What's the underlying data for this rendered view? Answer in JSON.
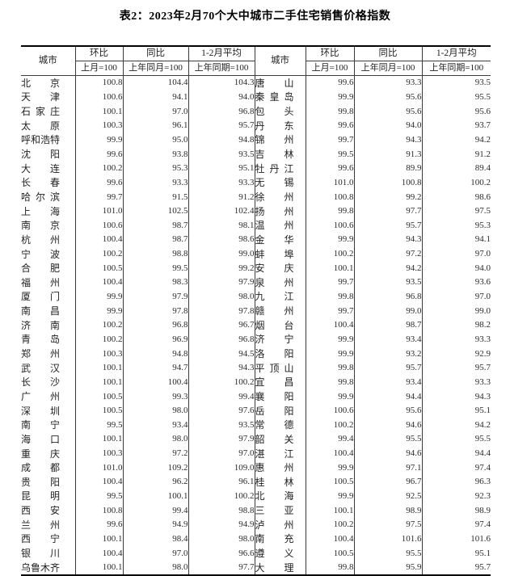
{
  "title": "表2：2023年2月70个大中城市二手住宅销售价格指数",
  "header": {
    "city": "城市",
    "mom": "环比",
    "mom_base": "上月=100",
    "yoy": "同比",
    "yoy_base": "上年同月=100",
    "avg": "1-2月平均",
    "avg_base": "上年同期=100"
  },
  "rows": [
    {
      "l": {
        "city": "北京",
        "mom": "100.8",
        "yoy": "104.4",
        "avg": "104.3"
      },
      "r": {
        "city": "唐山",
        "mom": "99.6",
        "yoy": "93.3",
        "avg": "93.5"
      }
    },
    {
      "l": {
        "city": "天津",
        "mom": "100.6",
        "yoy": "94.1",
        "avg": "94.0"
      },
      "r": {
        "city": "秦皇岛",
        "mom": "99.9",
        "yoy": "95.6",
        "avg": "95.5"
      }
    },
    {
      "l": {
        "city": "石家庄",
        "mom": "100.1",
        "yoy": "97.0",
        "avg": "96.8"
      },
      "r": {
        "city": "包头",
        "mom": "99.8",
        "yoy": "95.6",
        "avg": "95.6"
      }
    },
    {
      "l": {
        "city": "太原",
        "mom": "100.3",
        "yoy": "96.1",
        "avg": "95.7"
      },
      "r": {
        "city": "丹东",
        "mom": "99.6",
        "yoy": "94.0",
        "avg": "93.7"
      }
    },
    {
      "l": {
        "city": "呼和浩特",
        "mom": "99.9",
        "yoy": "95.0",
        "avg": "94.8"
      },
      "r": {
        "city": "锦州",
        "mom": "99.7",
        "yoy": "94.3",
        "avg": "94.2"
      }
    },
    {
      "l": {
        "city": "沈阳",
        "mom": "99.6",
        "yoy": "93.8",
        "avg": "93.5"
      },
      "r": {
        "city": "吉林",
        "mom": "99.5",
        "yoy": "91.3",
        "avg": "91.2"
      }
    },
    {
      "l": {
        "city": "大连",
        "mom": "100.2",
        "yoy": "95.3",
        "avg": "95.1"
      },
      "r": {
        "city": "牡丹江",
        "mom": "99.6",
        "yoy": "89.9",
        "avg": "89.4"
      }
    },
    {
      "l": {
        "city": "长春",
        "mom": "99.6",
        "yoy": "93.3",
        "avg": "93.3"
      },
      "r": {
        "city": "无锡",
        "mom": "101.0",
        "yoy": "100.8",
        "avg": "100.2"
      }
    },
    {
      "l": {
        "city": "哈尔滨",
        "mom": "99.7",
        "yoy": "91.5",
        "avg": "91.2"
      },
      "r": {
        "city": "徐州",
        "mom": "100.8",
        "yoy": "99.2",
        "avg": "98.6"
      }
    },
    {
      "l": {
        "city": "上海",
        "mom": "101.0",
        "yoy": "102.5",
        "avg": "102.4"
      },
      "r": {
        "city": "扬州",
        "mom": "99.8",
        "yoy": "97.7",
        "avg": "97.5"
      }
    },
    {
      "l": {
        "city": "南京",
        "mom": "100.6",
        "yoy": "98.7",
        "avg": "98.1"
      },
      "r": {
        "city": "温州",
        "mom": "100.6",
        "yoy": "95.7",
        "avg": "95.3"
      }
    },
    {
      "l": {
        "city": "杭州",
        "mom": "100.4",
        "yoy": "98.7",
        "avg": "98.6"
      },
      "r": {
        "city": "金华",
        "mom": "99.9",
        "yoy": "94.3",
        "avg": "94.1"
      }
    },
    {
      "l": {
        "city": "宁波",
        "mom": "100.2",
        "yoy": "98.8",
        "avg": "99.0"
      },
      "r": {
        "city": "蚌埠",
        "mom": "100.2",
        "yoy": "97.2",
        "avg": "97.0"
      }
    },
    {
      "l": {
        "city": "合肥",
        "mom": "100.5",
        "yoy": "99.5",
        "avg": "99.2"
      },
      "r": {
        "city": "安庆",
        "mom": "100.1",
        "yoy": "94.2",
        "avg": "94.0"
      }
    },
    {
      "l": {
        "city": "福州",
        "mom": "100.4",
        "yoy": "98.3",
        "avg": "97.9"
      },
      "r": {
        "city": "泉州",
        "mom": "99.7",
        "yoy": "93.5",
        "avg": "93.6"
      }
    },
    {
      "l": {
        "city": "厦门",
        "mom": "99.9",
        "yoy": "97.9",
        "avg": "98.0"
      },
      "r": {
        "city": "九江",
        "mom": "99.8",
        "yoy": "96.8",
        "avg": "97.0"
      }
    },
    {
      "l": {
        "city": "南昌",
        "mom": "99.9",
        "yoy": "97.8",
        "avg": "97.8"
      },
      "r": {
        "city": "赣州",
        "mom": "99.7",
        "yoy": "99.0",
        "avg": "99.0"
      }
    },
    {
      "l": {
        "city": "济南",
        "mom": "100.2",
        "yoy": "96.8",
        "avg": "96.7"
      },
      "r": {
        "city": "烟台",
        "mom": "100.4",
        "yoy": "98.7",
        "avg": "98.2"
      }
    },
    {
      "l": {
        "city": "青岛",
        "mom": "100.2",
        "yoy": "96.9",
        "avg": "96.8"
      },
      "r": {
        "city": "济宁",
        "mom": "99.9",
        "yoy": "93.4",
        "avg": "93.3"
      }
    },
    {
      "l": {
        "city": "郑州",
        "mom": "100.3",
        "yoy": "94.8",
        "avg": "94.5"
      },
      "r": {
        "city": "洛阳",
        "mom": "99.9",
        "yoy": "93.2",
        "avg": "92.9"
      }
    },
    {
      "l": {
        "city": "武汉",
        "mom": "100.1",
        "yoy": "94.7",
        "avg": "94.3"
      },
      "r": {
        "city": "平顶山",
        "mom": "99.8",
        "yoy": "95.7",
        "avg": "95.7"
      }
    },
    {
      "l": {
        "city": "长沙",
        "mom": "100.1",
        "yoy": "100.4",
        "avg": "100.2"
      },
      "r": {
        "city": "宜昌",
        "mom": "99.8",
        "yoy": "93.4",
        "avg": "93.3"
      }
    },
    {
      "l": {
        "city": "广州",
        "mom": "100.5",
        "yoy": "99.3",
        "avg": "99.4"
      },
      "r": {
        "city": "襄阳",
        "mom": "99.9",
        "yoy": "94.4",
        "avg": "94.3"
      }
    },
    {
      "l": {
        "city": "深圳",
        "mom": "100.5",
        "yoy": "98.0",
        "avg": "97.6"
      },
      "r": {
        "city": "岳阳",
        "mom": "100.6",
        "yoy": "95.6",
        "avg": "95.1"
      }
    },
    {
      "l": {
        "city": "南宁",
        "mom": "99.5",
        "yoy": "93.4",
        "avg": "93.5"
      },
      "r": {
        "city": "常德",
        "mom": "100.2",
        "yoy": "94.6",
        "avg": "94.2"
      }
    },
    {
      "l": {
        "city": "海口",
        "mom": "100.1",
        "yoy": "98.0",
        "avg": "97.9"
      },
      "r": {
        "city": "韶关",
        "mom": "99.4",
        "yoy": "95.5",
        "avg": "95.5"
      }
    },
    {
      "l": {
        "city": "重庆",
        "mom": "100.3",
        "yoy": "97.2",
        "avg": "97.0"
      },
      "r": {
        "city": "湛江",
        "mom": "100.4",
        "yoy": "94.6",
        "avg": "94.4"
      }
    },
    {
      "l": {
        "city": "成都",
        "mom": "101.0",
        "yoy": "109.2",
        "avg": "109.0"
      },
      "r": {
        "city": "惠州",
        "mom": "99.9",
        "yoy": "97.1",
        "avg": "97.4"
      }
    },
    {
      "l": {
        "city": "贵阳",
        "mom": "100.4",
        "yoy": "96.2",
        "avg": "96.1"
      },
      "r": {
        "city": "桂林",
        "mom": "100.5",
        "yoy": "96.7",
        "avg": "96.3"
      }
    },
    {
      "l": {
        "city": "昆明",
        "mom": "99.5",
        "yoy": "100.1",
        "avg": "100.2"
      },
      "r": {
        "city": "北海",
        "mom": "99.9",
        "yoy": "92.5",
        "avg": "92.3"
      }
    },
    {
      "l": {
        "city": "西安",
        "mom": "100.8",
        "yoy": "99.4",
        "avg": "98.8"
      },
      "r": {
        "city": "三亚",
        "mom": "100.1",
        "yoy": "98.9",
        "avg": "98.9"
      }
    },
    {
      "l": {
        "city": "兰州",
        "mom": "99.6",
        "yoy": "94.9",
        "avg": "94.9"
      },
      "r": {
        "city": "泸州",
        "mom": "100.2",
        "yoy": "97.5",
        "avg": "97.4"
      }
    },
    {
      "l": {
        "city": "西宁",
        "mom": "100.1",
        "yoy": "98.4",
        "avg": "98.0"
      },
      "r": {
        "city": "南充",
        "mom": "100.4",
        "yoy": "101.6",
        "avg": "101.6"
      }
    },
    {
      "l": {
        "city": "银川",
        "mom": "100.4",
        "yoy": "97.0",
        "avg": "96.6"
      },
      "r": {
        "city": "遵义",
        "mom": "100.5",
        "yoy": "95.5",
        "avg": "95.1"
      }
    },
    {
      "l": {
        "city": "乌鲁木齐",
        "mom": "100.1",
        "yoy": "98.0",
        "avg": "97.7"
      },
      "r": {
        "city": "大理",
        "mom": "99.8",
        "yoy": "95.9",
        "avg": "95.7"
      }
    }
  ]
}
